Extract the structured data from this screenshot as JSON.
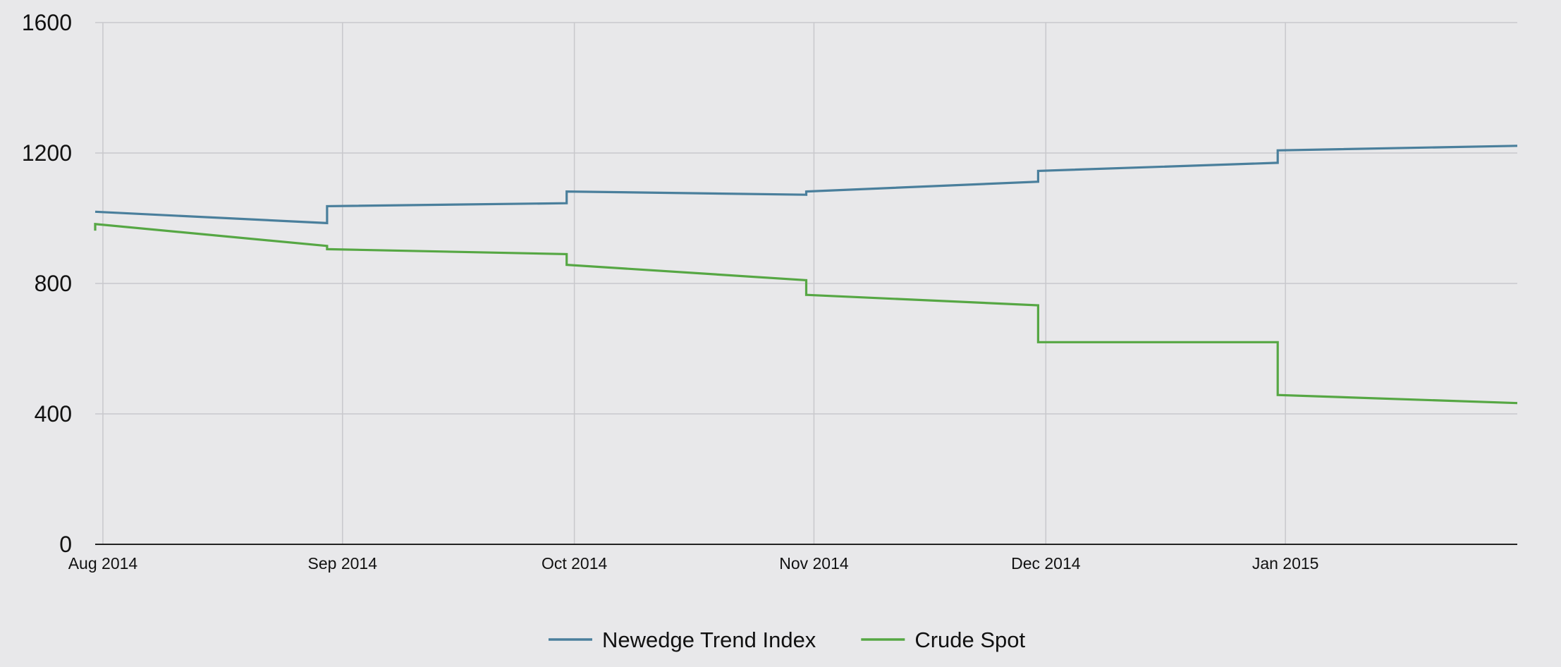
{
  "chart_data": {
    "type": "line",
    "title": "",
    "xlabel": "",
    "ylabel": "",
    "ylim": [
      0,
      1600
    ],
    "yticks": [
      0,
      400,
      800,
      1200,
      1600
    ],
    "grid": true,
    "legend_position": "bottom-center",
    "x_ticks": [
      {
        "date": "2014-08-01",
        "label": "Aug 2014"
      },
      {
        "date": "2014-09-01",
        "label": "Sep 2014"
      },
      {
        "date": "2014-10-01",
        "label": "Oct 2014"
      },
      {
        "date": "2014-11-01",
        "label": "Nov 2014"
      },
      {
        "date": "2014-12-01",
        "label": "Dec 2014"
      },
      {
        "date": "2015-01-01",
        "label": "Jan 2015"
      }
    ],
    "xlim": [
      "2014-07-31",
      "2015-01-31"
    ],
    "series": [
      {
        "name": "Newedge Trend Index",
        "color": "#4a7f9c",
        "points": [
          [
            "2014-07-31",
            1020
          ],
          [
            "2014-08-30",
            985
          ],
          [
            "2014-08-30",
            1037
          ],
          [
            "2014-09-30",
            1046
          ],
          [
            "2014-09-30",
            1082
          ],
          [
            "2014-10-31",
            1072
          ],
          [
            "2014-10-31",
            1082
          ],
          [
            "2014-11-30",
            1112
          ],
          [
            "2014-11-30",
            1145
          ],
          [
            "2014-12-31",
            1170
          ],
          [
            "2014-12-31",
            1208
          ],
          [
            "2015-01-31",
            1222
          ]
        ]
      },
      {
        "name": "Crude Spot",
        "color": "#56a744",
        "points": [
          [
            "2014-07-31",
            962
          ],
          [
            "2014-07-31",
            982
          ],
          [
            "2014-08-30",
            915
          ],
          [
            "2014-08-30",
            905
          ],
          [
            "2014-09-30",
            890
          ],
          [
            "2014-09-30",
            857
          ],
          [
            "2014-10-31",
            810
          ],
          [
            "2014-10-31",
            765
          ],
          [
            "2014-11-30",
            733
          ],
          [
            "2014-11-30",
            620
          ],
          [
            "2014-12-31",
            620
          ],
          [
            "2014-12-31",
            458
          ],
          [
            "2015-01-31",
            433
          ]
        ]
      }
    ]
  }
}
